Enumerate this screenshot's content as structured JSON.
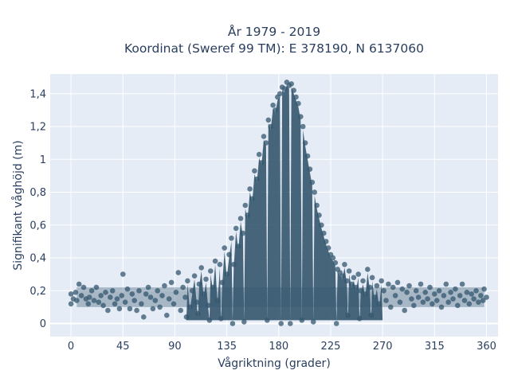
{
  "chart_data": {
    "type": "scatter",
    "title_line1": "År 1979 - 2019",
    "title_line2": "Koordinat (Sweref 99 TM): E 378190, N 6137060",
    "xlabel": "Vågriktning (grader)",
    "ylabel": "Signifikant våghöjd (m)",
    "xlim": [
      -18,
      370
    ],
    "ylim": [
      -0.08,
      1.52
    ],
    "xticks": [
      0,
      45,
      90,
      135,
      180,
      225,
      270,
      315,
      360
    ],
    "xtick_labels": [
      "0",
      "45",
      "90",
      "135",
      "180",
      "225",
      "270",
      "315",
      "360"
    ],
    "yticks": [
      0,
      0.2,
      0.4,
      0.6,
      0.8,
      1,
      1.2,
      1.4
    ],
    "ytick_labels": [
      "0",
      "0,2",
      "0,4",
      "0,6",
      "0,8",
      "1",
      "1,2",
      "1,4"
    ],
    "grid": true,
    "legend": false,
    "series": [
      {
        "points": [
          [
            0,
            0.12
          ],
          [
            0,
            0.18
          ],
          [
            2,
            0.15
          ],
          [
            4,
            0.19
          ],
          [
            5,
            0.14
          ],
          [
            7,
            0.24
          ],
          [
            9,
            0.17
          ],
          [
            11,
            0.22
          ],
          [
            13,
            0.15
          ],
          [
            15,
            0.12
          ],
          [
            16,
            0.16
          ],
          [
            18,
            0.2
          ],
          [
            20,
            0.14
          ],
          [
            22,
            0.22
          ],
          [
            24,
            0.13
          ],
          [
            26,
            0.17
          ],
          [
            28,
            0.11
          ],
          [
            30,
            0.19
          ],
          [
            32,
            0.08
          ],
          [
            34,
            0.16
          ],
          [
            36,
            0.2
          ],
          [
            38,
            0.12
          ],
          [
            40,
            0.15
          ],
          [
            42,
            0.09
          ],
          [
            44,
            0.17
          ],
          [
            45,
            0.3
          ],
          [
            47,
            0.13
          ],
          [
            49,
            0.21
          ],
          [
            51,
            0.09
          ],
          [
            53,
            0.18
          ],
          [
            55,
            0.14
          ],
          [
            57,
            0.08
          ],
          [
            59,
            0.2
          ],
          [
            61,
            0.12
          ],
          [
            63,
            0.04
          ],
          [
            65,
            0.18
          ],
          [
            67,
            0.22
          ],
          [
            69,
            0.16
          ],
          [
            71,
            0.09
          ],
          [
            73,
            0.14
          ],
          [
            75,
            0.2
          ],
          [
            77,
            0.1
          ],
          [
            79,
            0.17
          ],
          [
            81,
            0.23
          ],
          [
            83,
            0.05
          ],
          [
            85,
            0.15
          ],
          [
            87,
            0.25
          ],
          [
            89,
            0.12
          ],
          [
            91,
            0.19
          ],
          [
            93,
            0.31
          ],
          [
            95,
            0.08
          ],
          [
            97,
            0.22
          ],
          [
            99,
            0.16
          ],
          [
            101,
            0.26
          ],
          [
            103,
            0.1
          ],
          [
            105,
            0.2
          ],
          [
            107,
            0.29
          ],
          [
            109,
            0.13
          ],
          [
            111,
            0.24
          ],
          [
            113,
            0.34
          ],
          [
            115,
            0.18
          ],
          [
            117,
            0.27
          ],
          [
            119,
            0.11
          ],
          [
            121,
            0.32
          ],
          [
            123,
            0.22
          ],
          [
            125,
            0.38
          ],
          [
            127,
            0.14
          ],
          [
            129,
            0.36
          ],
          [
            131,
            0.25
          ],
          [
            133,
            0.46
          ],
          [
            135,
            0.3
          ],
          [
            137,
            0.42
          ],
          [
            139,
            0.52
          ],
          [
            141,
            0.36
          ],
          [
            143,
            0.58
          ],
          [
            145,
            0.47
          ],
          [
            147,
            0.64
          ],
          [
            149,
            0.55
          ],
          [
            151,
            0.72
          ],
          [
            153,
            0.66
          ],
          [
            155,
            0.82
          ],
          [
            157,
            0.76
          ],
          [
            159,
            0.93
          ],
          [
            161,
            0.88
          ],
          [
            163,
            1.03
          ],
          [
            165,
            0.98
          ],
          [
            167,
            1.14
          ],
          [
            169,
            1.1
          ],
          [
            171,
            1.24
          ],
          [
            173,
            1.2
          ],
          [
            175,
            1.33
          ],
          [
            177,
            1.3
          ],
          [
            179,
            1.38
          ],
          [
            181,
            1.4
          ],
          [
            183,
            1.44
          ],
          [
            185,
            1.43
          ],
          [
            187,
            1.47
          ],
          [
            189,
            1.45
          ],
          [
            191,
            1.46
          ],
          [
            193,
            1.42
          ],
          [
            195,
            1.38
          ],
          [
            197,
            1.34
          ],
          [
            199,
            1.26
          ],
          [
            201,
            1.2
          ],
          [
            203,
            1.1
          ],
          [
            205,
            1.02
          ],
          [
            207,
            0.94
          ],
          [
            209,
            0.86
          ],
          [
            211,
            0.8
          ],
          [
            213,
            0.72
          ],
          [
            215,
            0.66
          ],
          [
            217,
            0.6
          ],
          [
            219,
            0.55
          ],
          [
            221,
            0.5
          ],
          [
            223,
            0.46
          ],
          [
            225,
            0.42
          ],
          [
            227,
            0.4
          ],
          [
            229,
            0.37
          ],
          [
            231,
            0.33
          ],
          [
            233,
            0.31
          ],
          [
            235,
            0.29
          ],
          [
            237,
            0.36
          ],
          [
            239,
            0.26
          ],
          [
            241,
            0.32
          ],
          [
            243,
            0.24
          ],
          [
            245,
            0.28
          ],
          [
            247,
            0.22
          ],
          [
            249,
            0.3
          ],
          [
            251,
            0.2
          ],
          [
            253,
            0.26
          ],
          [
            255,
            0.18
          ],
          [
            257,
            0.33
          ],
          [
            259,
            0.22
          ],
          [
            261,
            0.28
          ],
          [
            263,
            0.16
          ],
          [
            265,
            0.23
          ],
          [
            267,
            0.12
          ],
          [
            269,
            0.26
          ],
          [
            271,
            0.2
          ],
          [
            273,
            0.14
          ],
          [
            275,
            0.24
          ],
          [
            277,
            0.1
          ],
          [
            279,
            0.22
          ],
          [
            281,
            0.17
          ],
          [
            283,
            0.25
          ],
          [
            285,
            0.13
          ],
          [
            287,
            0.21
          ],
          [
            289,
            0.08
          ],
          [
            291,
            0.19
          ],
          [
            293,
            0.23
          ],
          [
            295,
            0.15
          ],
          [
            297,
            0.11
          ],
          [
            299,
            0.2
          ],
          [
            301,
            0.16
          ],
          [
            303,
            0.24
          ],
          [
            305,
            0.13
          ],
          [
            307,
            0.19
          ],
          [
            309,
            0.15
          ],
          [
            311,
            0.22
          ],
          [
            313,
            0.12
          ],
          [
            315,
            0.18
          ],
          [
            317,
            0.14
          ],
          [
            319,
            0.2
          ],
          [
            321,
            0.1
          ],
          [
            323,
            0.17
          ],
          [
            325,
            0.24
          ],
          [
            327,
            0.13
          ],
          [
            329,
            0.19
          ],
          [
            331,
            0.15
          ],
          [
            333,
            0.21
          ],
          [
            335,
            0.11
          ],
          [
            337,
            0.17
          ],
          [
            339,
            0.24
          ],
          [
            341,
            0.14
          ],
          [
            343,
            0.19
          ],
          [
            345,
            0.12
          ],
          [
            347,
            0.18
          ],
          [
            349,
            0.15
          ],
          [
            351,
            0.2
          ],
          [
            353,
            0.13
          ],
          [
            355,
            0.17
          ],
          [
            357,
            0.14
          ],
          [
            358,
            0.21
          ],
          [
            360,
            0.16
          ],
          [
            182,
            0.0
          ],
          [
            120,
            0.02
          ],
          [
            150,
            0.01
          ],
          [
            200,
            0.02
          ],
          [
            230,
            0.0
          ],
          [
            250,
            0.03
          ],
          [
            100,
            0.04
          ],
          [
            260,
            0.05
          ],
          [
            140,
            0.0
          ],
          [
            210,
            0.01
          ],
          [
            170,
            0.02
          ],
          [
            110,
            0.06
          ],
          [
            240,
            0.05
          ],
          [
            130,
            0.03
          ],
          [
            190,
            0.0
          ]
        ]
      }
    ],
    "colors": {
      "marker": "#34576e",
      "plot_bg": "#e5ecf6",
      "grid": "#ffffff",
      "text": "#2a3f5f"
    }
  }
}
